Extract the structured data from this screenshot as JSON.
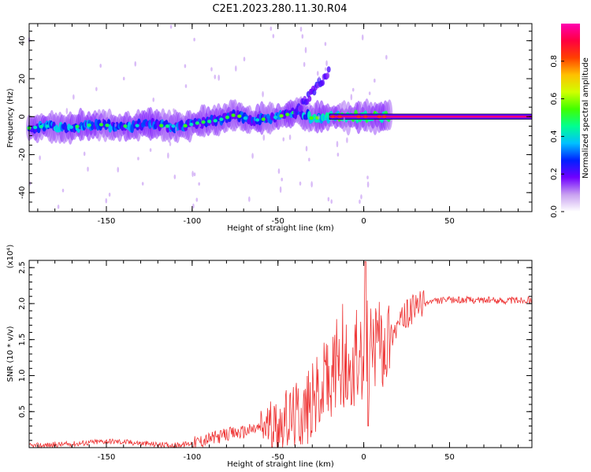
{
  "title": "C2E1.2023.280.11.30.R04",
  "chart_data": [
    {
      "type": "heatmap",
      "xlabel": "Height of straight line (km)",
      "ylabel": "Frequency (Hz)",
      "xlim": [
        -195,
        98
      ],
      "ylim": [
        -50,
        49
      ],
      "x_ticks": [
        -150,
        -100,
        -50,
        0,
        50
      ],
      "y_ticks": [
        -40,
        -20,
        0,
        20,
        40
      ],
      "grid": false,
      "colorbar": {
        "label": "Normalized spectral amplitude",
        "range": [
          0,
          1
        ],
        "ticks": [
          "0.0",
          "0.2",
          "0.4",
          "0.6",
          "0.8"
        ],
        "colormap": [
          "#ffffff",
          "#c8a0f0",
          "#7000ff",
          "#0020ff",
          "#00c0ff",
          "#00ff90",
          "#40ff00",
          "#d0ff00",
          "#ffc000",
          "#ff4000",
          "#ff0040",
          "#ff00b0"
        ]
      },
      "track": [
        {
          "x": -195,
          "f": -6,
          "a": 0.45
        },
        {
          "x": -185,
          "f": -5,
          "a": 0.5
        },
        {
          "x": -175,
          "f": -6,
          "a": 0.6
        },
        {
          "x": -165,
          "f": -5,
          "a": 0.5
        },
        {
          "x": -155,
          "f": -4,
          "a": 0.45
        },
        {
          "x": -145,
          "f": -5,
          "a": 0.45
        },
        {
          "x": -135,
          "f": -5,
          "a": 0.45
        },
        {
          "x": -125,
          "f": -4,
          "a": 0.45
        },
        {
          "x": -115,
          "f": -5,
          "a": 0.4
        },
        {
          "x": -105,
          "f": -5,
          "a": 0.4
        },
        {
          "x": -95,
          "f": -3,
          "a": 0.35
        },
        {
          "x": -85,
          "f": -2,
          "a": 0.35
        },
        {
          "x": -75,
          "f": 1,
          "a": 0.4
        },
        {
          "x": -65,
          "f": -2,
          "a": 0.45
        },
        {
          "x": -55,
          "f": -1,
          "a": 0.45
        },
        {
          "x": -45,
          "f": 1,
          "a": 0.4
        },
        {
          "x": -38,
          "f": 3,
          "a": 0.5
        },
        {
          "x": -30,
          "f": -1,
          "a": 0.6
        },
        {
          "x": -22,
          "f": 0,
          "a": 0.8
        },
        {
          "x": -15,
          "f": 0,
          "a": 0.9
        },
        {
          "x": -5,
          "f": 0,
          "a": 0.9
        },
        {
          "x": 5,
          "f": 0,
          "a": 0.85
        },
        {
          "x": 15,
          "f": 0,
          "a": 0.95
        },
        {
          "x": 40,
          "f": 0,
          "a": 1.0
        },
        {
          "x": 70,
          "f": 0,
          "a": 1.0
        },
        {
          "x": 95,
          "f": 0,
          "a": 1.0
        }
      ]
    },
    {
      "type": "line",
      "xlabel": "Height of straight line (km)",
      "ylabel": "SNR (10 * v/v)",
      "y_multiplier": "(x10⁴)",
      "xlim": [
        -195,
        98
      ],
      "ylim": [
        0,
        2.6
      ],
      "x_ticks": [
        -150,
        -100,
        -50,
        0,
        50
      ],
      "y_ticks": [
        0.5,
        1.0,
        1.5,
        2.0,
        2.5
      ],
      "line_color": "#ee3333",
      "series": [
        {
          "x": [
            -195,
            -180,
            -170,
            -160,
            -150,
            -140,
            -130,
            -120,
            -110,
            -100,
            -90,
            -80,
            -70,
            -60,
            -50,
            -45,
            -40,
            -35,
            -30,
            -25,
            -20,
            -15,
            -10,
            -5,
            0,
            5,
            10,
            15,
            20,
            25,
            30,
            35,
            40,
            50,
            60,
            70,
            80,
            90,
            98
          ],
          "y": [
            0.02,
            0.04,
            0.05,
            0.07,
            0.09,
            0.08,
            0.06,
            0.04,
            0.03,
            0.06,
            0.12,
            0.18,
            0.22,
            0.28,
            0.34,
            0.38,
            0.45,
            0.5,
            0.6,
            0.8,
            0.95,
            1.05,
            1.1,
            1.15,
            1.25,
            1.35,
            1.45,
            1.55,
            1.7,
            1.85,
            1.95,
            2.0,
            2.03,
            2.05,
            2.05,
            2.05,
            2.04,
            2.05,
            2.05
          ]
        }
      ]
    }
  ]
}
